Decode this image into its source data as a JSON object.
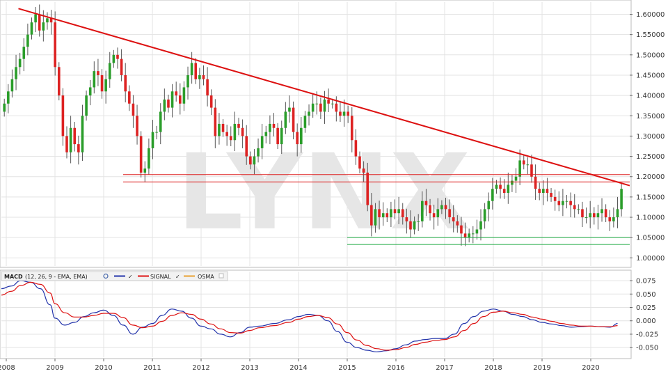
{
  "chart_data": [
    {
      "type": "candlestick",
      "title": "",
      "watermark": "LYNX",
      "x_ticks": [
        "2008",
        "2009",
        "2010",
        "2011",
        "2012",
        "2013",
        "2014",
        "2015",
        "2016",
        "2017",
        "2018",
        "2019",
        "2020"
      ],
      "y_ticks": [
        "1.60000",
        "1.55000",
        "1.50000",
        "1.45000",
        "1.40000",
        "1.35000",
        "1.30000",
        "1.25000",
        "1.20000",
        "1.15000",
        "1.10000",
        "1.05000",
        "1.00000"
      ],
      "ylim": [
        0.98,
        1.63
      ],
      "xlim": [
        2007.9,
        2020.8
      ],
      "colors": {
        "up": "#2a9d2a",
        "down": "#dd2222",
        "trendline": "#dd1111",
        "resistance": "#dd2222",
        "support": "#22aa44"
      },
      "trendline": {
        "from": {
          "x": 2008.25,
          "y": 1.614
        },
        "to": {
          "x": 2020.8,
          "y": 1.178
        }
      },
      "horizontal_lines": [
        {
          "y": 1.205,
          "x_from": 2010.4,
          "color": "resistance"
        },
        {
          "y": 1.187,
          "x_from": 2010.4,
          "color": "resistance"
        },
        {
          "y": 1.05,
          "x_from": 2015.0,
          "color": "support"
        },
        {
          "y": 1.033,
          "x_from": 2015.0,
          "color": "support"
        }
      ],
      "closes": [
        1.38,
        1.41,
        1.44,
        1.47,
        1.49,
        1.52,
        1.55,
        1.58,
        1.6,
        1.56,
        1.58,
        1.59,
        1.58,
        1.47,
        1.4,
        1.3,
        1.26,
        1.32,
        1.28,
        1.26,
        1.35,
        1.4,
        1.42,
        1.46,
        1.45,
        1.41,
        1.44,
        1.48,
        1.5,
        1.49,
        1.45,
        1.41,
        1.38,
        1.35,
        1.3,
        1.21,
        1.22,
        1.27,
        1.31,
        1.31,
        1.36,
        1.39,
        1.37,
        1.41,
        1.4,
        1.38,
        1.42,
        1.45,
        1.48,
        1.44,
        1.45,
        1.44,
        1.4,
        1.37,
        1.3,
        1.33,
        1.31,
        1.3,
        1.29,
        1.33,
        1.32,
        1.3,
        1.25,
        1.23,
        1.25,
        1.27,
        1.3,
        1.31,
        1.33,
        1.32,
        1.28,
        1.32,
        1.36,
        1.37,
        1.31,
        1.28,
        1.32,
        1.35,
        1.36,
        1.38,
        1.38,
        1.36,
        1.39,
        1.38,
        1.38,
        1.36,
        1.35,
        1.36,
        1.35,
        1.29,
        1.25,
        1.22,
        1.21,
        1.13,
        1.08,
        1.12,
        1.1,
        1.11,
        1.1,
        1.12,
        1.11,
        1.12,
        1.1,
        1.09,
        1.07,
        1.09,
        1.09,
        1.14,
        1.13,
        1.11,
        1.1,
        1.12,
        1.13,
        1.12,
        1.1,
        1.09,
        1.08,
        1.06,
        1.05,
        1.06,
        1.06,
        1.07,
        1.09,
        1.12,
        1.14,
        1.17,
        1.18,
        1.17,
        1.16,
        1.18,
        1.19,
        1.2,
        1.24,
        1.23,
        1.23,
        1.2,
        1.17,
        1.16,
        1.17,
        1.16,
        1.15,
        1.14,
        1.13,
        1.14,
        1.14,
        1.13,
        1.12,
        1.12,
        1.1,
        1.1,
        1.11,
        1.1,
        1.11,
        1.12,
        1.1,
        1.09,
        1.1,
        1.12,
        1.17
      ],
      "series_labels": [
        "MACD",
        "SIGNAL",
        "OSMA"
      ]
    },
    {
      "type": "line",
      "legend": {
        "name": "MACD",
        "params": "(12, 26, 9 - EMA, EMA)",
        "signal": "SIGNAL",
        "osma": "OSMA"
      },
      "y_ticks": [
        "0.075",
        "0.050",
        "0.025",
        "0.000",
        "-0.025",
        "-0.050"
      ],
      "ylim": [
        -0.068,
        0.092
      ],
      "series": [
        {
          "name": "MACD",
          "color": "#2233aa",
          "x": [
            2007.9,
            2008.1,
            2008.3,
            2008.5,
            2008.7,
            2008.9,
            2009.0,
            2009.2,
            2009.4,
            2009.6,
            2009.8,
            2010.0,
            2010.2,
            2010.4,
            2010.6,
            2010.8,
            2011.0,
            2011.2,
            2011.4,
            2011.6,
            2011.8,
            2012.0,
            2012.2,
            2012.4,
            2012.6,
            2012.8,
            2013.0,
            2013.2,
            2013.5,
            2013.8,
            2014.0,
            2014.2,
            2014.4,
            2014.6,
            2014.8,
            2015.0,
            2015.2,
            2015.4,
            2015.6,
            2015.8,
            2016.0,
            2016.2,
            2016.4,
            2016.6,
            2016.8,
            2017.0,
            2017.2,
            2017.4,
            2017.6,
            2017.8,
            2018.0,
            2018.2,
            2018.4,
            2018.6,
            2018.8,
            2019.0,
            2019.2,
            2019.4,
            2019.6,
            2019.8,
            2020.0,
            2020.2,
            2020.4,
            2020.55
          ],
          "y": [
            0.06,
            0.065,
            0.075,
            0.072,
            0.06,
            0.03,
            0.005,
            -0.008,
            -0.003,
            0.008,
            0.015,
            0.02,
            0.01,
            -0.008,
            -0.025,
            -0.012,
            -0.005,
            0.01,
            0.022,
            0.018,
            0.005,
            -0.01,
            -0.015,
            -0.025,
            -0.03,
            -0.022,
            -0.012,
            -0.01,
            -0.005,
            0.002,
            0.008,
            0.012,
            0.01,
            0.0,
            -0.02,
            -0.04,
            -0.05,
            -0.055,
            -0.058,
            -0.056,
            -0.052,
            -0.045,
            -0.038,
            -0.035,
            -0.033,
            -0.033,
            -0.025,
            -0.005,
            0.008,
            0.018,
            0.022,
            0.018,
            0.012,
            0.008,
            0.002,
            -0.003,
            -0.006,
            -0.009,
            -0.012,
            -0.011,
            -0.01,
            -0.011,
            -0.012,
            -0.005
          ]
        },
        {
          "name": "SIGNAL",
          "color": "#dd1111",
          "x": [
            2007.9,
            2008.1,
            2008.3,
            2008.5,
            2008.7,
            2008.9,
            2009.0,
            2009.2,
            2009.4,
            2009.6,
            2009.8,
            2010.0,
            2010.2,
            2010.4,
            2010.6,
            2010.8,
            2011.0,
            2011.2,
            2011.4,
            2011.6,
            2011.8,
            2012.0,
            2012.2,
            2012.4,
            2012.6,
            2012.8,
            2013.0,
            2013.2,
            2013.5,
            2013.8,
            2014.0,
            2014.2,
            2014.4,
            2014.6,
            2014.8,
            2015.0,
            2015.2,
            2015.4,
            2015.6,
            2015.8,
            2016.0,
            2016.2,
            2016.4,
            2016.6,
            2016.8,
            2017.0,
            2017.2,
            2017.4,
            2017.6,
            2017.8,
            2018.0,
            2018.2,
            2018.4,
            2018.6,
            2018.8,
            2019.0,
            2019.2,
            2019.4,
            2019.6,
            2019.8,
            2020.0,
            2020.2,
            2020.4,
            2020.55
          ],
          "y": [
            0.048,
            0.055,
            0.066,
            0.072,
            0.068,
            0.052,
            0.032,
            0.015,
            0.007,
            0.007,
            0.01,
            0.014,
            0.014,
            0.006,
            -0.008,
            -0.013,
            -0.01,
            -0.001,
            0.01,
            0.015,
            0.012,
            0.003,
            -0.006,
            -0.015,
            -0.022,
            -0.023,
            -0.018,
            -0.013,
            -0.009,
            -0.003,
            0.003,
            0.008,
            0.01,
            0.006,
            -0.006,
            -0.022,
            -0.036,
            -0.046,
            -0.052,
            -0.055,
            -0.054,
            -0.05,
            -0.044,
            -0.04,
            -0.037,
            -0.035,
            -0.03,
            -0.018,
            -0.005,
            0.008,
            0.016,
            0.018,
            0.015,
            0.012,
            0.007,
            0.003,
            -0.001,
            -0.005,
            -0.008,
            -0.01,
            -0.01,
            -0.011,
            -0.011,
            -0.009
          ]
        },
        {
          "name": "OSMA",
          "color": "#e8a030"
        }
      ]
    }
  ]
}
